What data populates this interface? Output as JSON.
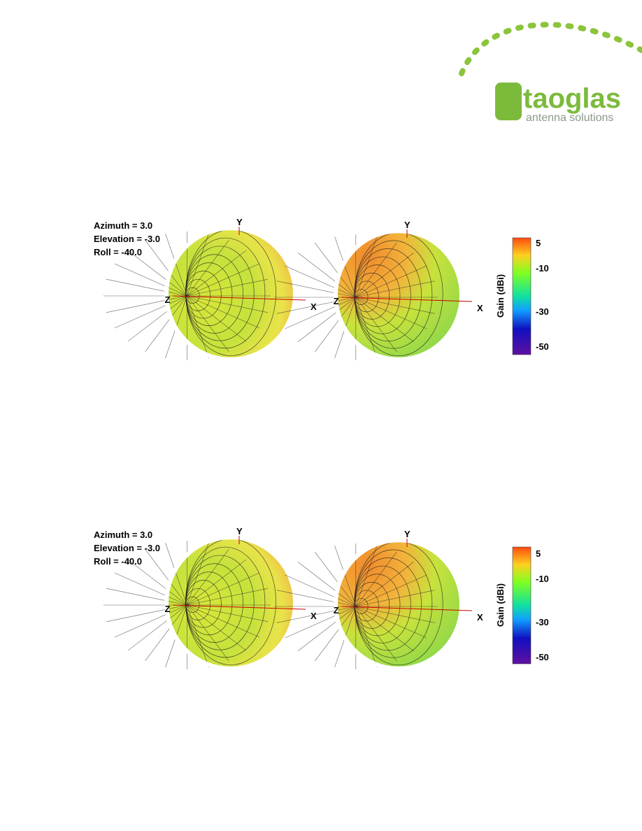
{
  "header": {
    "logo": {
      "brand": "taoglas",
      "tagline": "antenna solutions"
    }
  },
  "panels": [
    {
      "orientation": [
        "Azimuth = 3.0",
        "Elevation = -3.0",
        "Roll = -40.0"
      ],
      "plots": [
        {
          "axes": [
            "Y",
            "Z",
            "X"
          ]
        },
        {
          "axes": [
            "Y",
            "Z",
            "X"
          ]
        }
      ],
      "colorbar": {
        "title": "Gain (dBi)",
        "labels": [
          5,
          -10,
          -30,
          -50
        ]
      }
    },
    {
      "orientation": [
        "Azimuth = 3.0",
        "Elevation = -3.0",
        "Roll = -40.0"
      ],
      "plots": [
        {
          "axes": [
            "Y",
            "Z",
            "X"
          ]
        },
        {
          "axes": [
            "Y",
            "Z",
            "X"
          ]
        }
      ],
      "colorbar": {
        "title": "Gain (dBi)",
        "labels": [
          5,
          -10,
          -30,
          -50
        ]
      }
    }
  ]
}
